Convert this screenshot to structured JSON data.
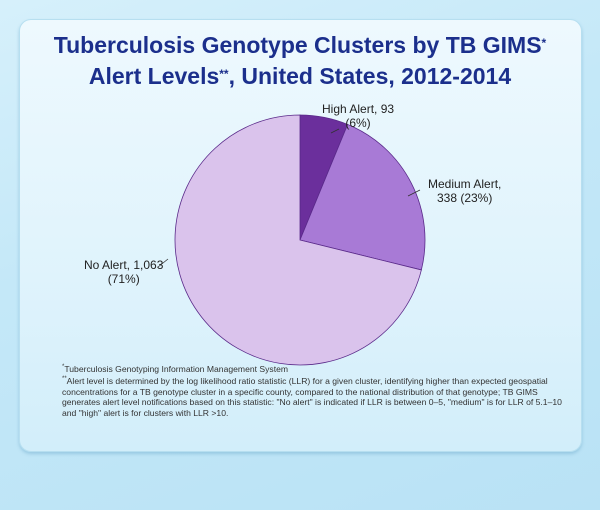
{
  "chart_data": {
    "type": "pie",
    "title_line1": "Tuberculosis Genotype Clusters by TB GIMS",
    "title_mark1": "*",
    "title_line2a": "Alert Levels",
    "title_mark2": "**",
    "title_line2b": ", United States, 2012-2014",
    "start": "top, clockwise",
    "slices": [
      {
        "name": "High Alert",
        "value": 93,
        "percent": 6,
        "label1": "High Alert, 93",
        "label2": "(6%)",
        "color": "#6b2f9c"
      },
      {
        "name": "Medium Alert",
        "value": 338,
        "percent": 23,
        "label1": "Medium Alert,",
        "label2": "338 (23%)",
        "color": "#a87ad6"
      },
      {
        "name": "No Alert",
        "value": 1063,
        "percent": 71,
        "label1": "No Alert, 1,063",
        "label2": "(71%)",
        "color": "#dac3ec"
      }
    ]
  },
  "footnotes": {
    "mark1": "*",
    "note1": "Tuberculosis Genotyping Information Management System",
    "mark2": "**",
    "note2": "Alert level is determined by the log likelihood ratio statistic (LLR) for a given cluster, identifying higher than expected geospatial concentrations for a TB genotype cluster in a specific county, compared to the national distribution of that genotype; TB GIMS generates alert level notifications based on this statistic: \"No alert\" is indicated if LLR is between 0–5, \"medium\" is for LLR of 5.1–10 and \"high\" alert is for clusters with LLR >10."
  }
}
